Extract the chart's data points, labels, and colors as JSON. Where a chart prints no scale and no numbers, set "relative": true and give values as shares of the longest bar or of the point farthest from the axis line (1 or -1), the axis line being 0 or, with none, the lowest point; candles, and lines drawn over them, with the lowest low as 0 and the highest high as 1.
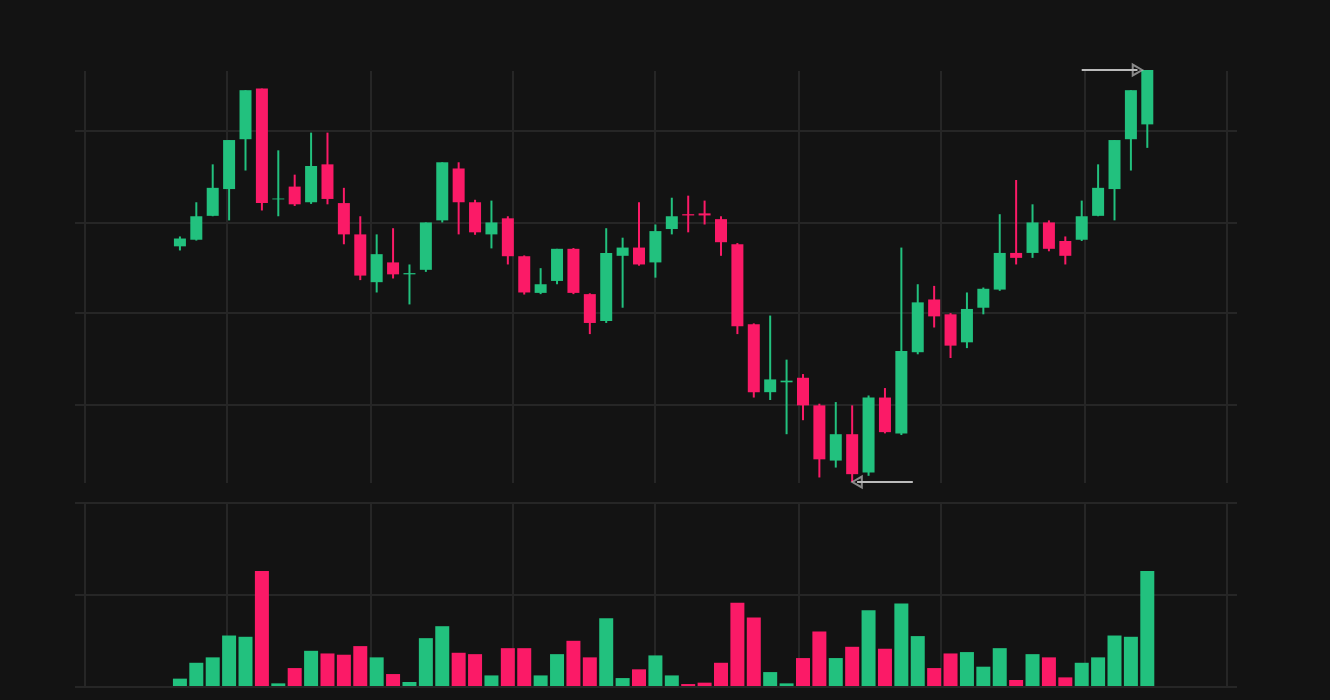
{
  "chart_data": [
    {
      "type": "candlestick",
      "relative": true,
      "grid": true,
      "tick_labels": false,
      "categories": [
        null,
        null,
        null,
        null,
        null,
        null,
        null,
        null,
        null,
        null,
        null,
        null,
        null,
        null,
        null,
        null,
        null,
        null,
        null,
        null,
        null,
        null,
        null,
        null,
        null,
        null,
        null,
        null,
        null,
        null,
        null,
        null,
        null,
        null,
        null,
        null,
        null,
        null,
        null,
        null,
        null,
        null,
        null,
        null,
        null,
        null,
        null,
        null,
        null,
        null,
        null,
        null,
        null,
        null,
        null,
        null,
        null,
        null,
        null,
        null
      ],
      "ohlc": [
        [
          0.572,
          0.596,
          0.562,
          0.591
        ],
        [
          0.588,
          0.679,
          0.586,
          0.645
        ],
        [
          0.646,
          0.771,
          0.645,
          0.714
        ],
        [
          0.711,
          0.83,
          0.635,
          0.83
        ],
        [
          0.832,
          0.951,
          0.756,
          0.951
        ],
        [
          0.955,
          0.955,
          0.659,
          0.677
        ],
        [
          0.686,
          0.805,
          0.645,
          0.688
        ],
        [
          0.717,
          0.746,
          0.67,
          0.674
        ],
        [
          0.679,
          0.848,
          0.675,
          0.767
        ],
        [
          0.771,
          0.848,
          0.674,
          0.687
        ],
        [
          0.677,
          0.714,
          0.577,
          0.601
        ],
        [
          0.601,
          0.645,
          0.49,
          0.501
        ],
        [
          0.485,
          0.601,
          0.46,
          0.553
        ],
        [
          0.533,
          0.616,
          0.494,
          0.504
        ],
        [
          0.504,
          0.528,
          0.431,
          0.507
        ],
        [
          0.515,
          0.63,
          0.51,
          0.63
        ],
        [
          0.635,
          0.776,
          0.63,
          0.776
        ],
        [
          0.761,
          0.776,
          0.601,
          0.679
        ],
        [
          0.679,
          0.685,
          0.6,
          0.606
        ],
        [
          0.601,
          0.683,
          0.567,
          0.63
        ],
        [
          0.64,
          0.645,
          0.528,
          0.548
        ],
        [
          0.548,
          0.55,
          0.455,
          0.46
        ],
        [
          0.459,
          0.519,
          0.456,
          0.48
        ],
        [
          0.488,
          0.566,
          0.48,
          0.566
        ],
        [
          0.566,
          0.568,
          0.456,
          0.459
        ],
        [
          0.456,
          0.458,
          0.359,
          0.386
        ],
        [
          0.391,
          0.616,
          0.386,
          0.556
        ],
        [
          0.549,
          0.593,
          0.423,
          0.569
        ],
        [
          0.569,
          0.679,
          0.525,
          0.528
        ],
        [
          0.533,
          0.625,
          0.496,
          0.609
        ],
        [
          0.614,
          0.69,
          0.601,
          0.645
        ],
        [
          0.65,
          0.695,
          0.606,
          0.647
        ],
        [
          0.652,
          0.683,
          0.625,
          0.647
        ],
        [
          0.638,
          0.645,
          0.549,
          0.582
        ],
        [
          0.577,
          0.58,
          0.359,
          0.378
        ],
        [
          0.383,
          0.385,
          0.205,
          0.218
        ],
        [
          0.218,
          0.404,
          0.199,
          0.249
        ],
        [
          0.242,
          0.297,
          0.116,
          0.246
        ],
        [
          0.253,
          0.262,
          0.15,
          0.186
        ],
        [
          0.186,
          0.19,
          0.011,
          0.055
        ],
        [
          0.052,
          0.194,
          0.035,
          0.116
        ],
        [
          0.116,
          0.186,
          0.0,
          0.019
        ],
        [
          0.023,
          0.21,
          0.015,
          0.205
        ],
        [
          0.205,
          0.228,
          0.118,
          0.121
        ],
        [
          0.118,
          0.569,
          0.114,
          0.318
        ],
        [
          0.315,
          0.48,
          0.31,
          0.436
        ],
        [
          0.443,
          0.476,
          0.375,
          0.402
        ],
        [
          0.407,
          0.41,
          0.301,
          0.331
        ],
        [
          0.339,
          0.46,
          0.325,
          0.42
        ],
        [
          0.423,
          0.472,
          0.407,
          0.469
        ],
        [
          0.467,
          0.65,
          0.464,
          0.556
        ],
        [
          0.556,
          0.733,
          0.528,
          0.544
        ],
        [
          0.556,
          0.674,
          0.544,
          0.63
        ],
        [
          0.63,
          0.635,
          0.56,
          0.566
        ],
        [
          0.585,
          0.596,
          0.528,
          0.549
        ],
        [
          0.588,
          0.683,
          0.585,
          0.645
        ],
        [
          0.646,
          0.771,
          0.645,
          0.714
        ],
        [
          0.711,
          0.83,
          0.635,
          0.83
        ],
        [
          0.832,
          0.951,
          0.756,
          0.951
        ],
        [
          0.868,
          1.0,
          0.811,
          1.0
        ]
      ],
      "colors": [
        "#22c17e",
        "#22c17e",
        "#22c17e",
        "#22c17e",
        "#22c17e",
        "#fb1a67",
        "#22c17e",
        "#fb1a67",
        "#22c17e",
        "#fb1a67",
        "#fb1a67",
        "#fb1a67",
        "#22c17e",
        "#fb1a67",
        "#22c17e",
        "#22c17e",
        "#22c17e",
        "#fb1a67",
        "#fb1a67",
        "#22c17e",
        "#fb1a67",
        "#fb1a67",
        "#22c17e",
        "#22c17e",
        "#fb1a67",
        "#fb1a67",
        "#22c17e",
        "#22c17e",
        "#fb1a67",
        "#22c17e",
        "#22c17e",
        "#fb1a67",
        "#fb1a67",
        "#fb1a67",
        "#fb1a67",
        "#fb1a67",
        "#22c17e",
        "#22c17e",
        "#fb1a67",
        "#fb1a67",
        "#22c17e",
        "#fb1a67",
        "#22c17e",
        "#fb1a67",
        "#22c17e",
        "#22c17e",
        "#fb1a67",
        "#fb1a67",
        "#22c17e",
        "#22c17e",
        "#22c17e",
        "#fb1a67",
        "#22c17e",
        "#fb1a67",
        "#fb1a67",
        "#22c17e",
        "#22c17e",
        "#22c17e",
        "#22c17e",
        "#22c17e"
      ]
    },
    {
      "type": "bar",
      "relative": true,
      "grid": true,
      "tick_labels": false,
      "categories": [
        null,
        null,
        null,
        null,
        null,
        null,
        null,
        null,
        null,
        null,
        null,
        null,
        null,
        null,
        null,
        null,
        null,
        null,
        null,
        null,
        null,
        null,
        null,
        null,
        null,
        null,
        null,
        null,
        null,
        null,
        null,
        null,
        null,
        null,
        null,
        null,
        null,
        null,
        null,
        null,
        null,
        null,
        null,
        null,
        null,
        null,
        null,
        null,
        null,
        null,
        null,
        null,
        null,
        null,
        null,
        null,
        null,
        null,
        null,
        null
      ],
      "values": [
        0.064,
        0.202,
        0.249,
        0.439,
        0.428,
        1.0,
        0.023,
        0.156,
        0.306,
        0.283,
        0.272,
        0.347,
        0.249,
        0.104,
        0.035,
        0.416,
        0.52,
        0.289,
        0.277,
        0.092,
        0.329,
        0.329,
        0.092,
        0.277,
        0.393,
        0.249,
        0.59,
        0.069,
        0.145,
        0.266,
        0.092,
        0.017,
        0.029,
        0.202,
        0.723,
        0.595,
        0.121,
        0.023,
        0.243,
        0.474,
        0.243,
        0.341,
        0.659,
        0.324,
        0.717,
        0.434,
        0.156,
        0.283,
        0.295,
        0.168,
        0.329,
        0.052,
        0.277,
        0.249,
        0.075,
        0.202,
        0.249,
        0.439,
        0.428,
        1.0
      ],
      "colors": [
        "#22c17e",
        "#22c17e",
        "#22c17e",
        "#22c17e",
        "#22c17e",
        "#fb1a67",
        "#22c17e",
        "#fb1a67",
        "#22c17e",
        "#fb1a67",
        "#fb1a67",
        "#fb1a67",
        "#22c17e",
        "#fb1a67",
        "#22c17e",
        "#22c17e",
        "#22c17e",
        "#fb1a67",
        "#fb1a67",
        "#22c17e",
        "#fb1a67",
        "#fb1a67",
        "#22c17e",
        "#22c17e",
        "#fb1a67",
        "#fb1a67",
        "#22c17e",
        "#22c17e",
        "#fb1a67",
        "#22c17e",
        "#22c17e",
        "#fb1a67",
        "#fb1a67",
        "#fb1a67",
        "#fb1a67",
        "#fb1a67",
        "#22c17e",
        "#22c17e",
        "#fb1a67",
        "#fb1a67",
        "#22c17e",
        "#fb1a67",
        "#22c17e",
        "#fb1a67",
        "#22c17e",
        "#22c17e",
        "#fb1a67",
        "#fb1a67",
        "#22c17e",
        "#22c17e",
        "#22c17e",
        "#fb1a67",
        "#22c17e",
        "#fb1a67",
        "#fb1a67",
        "#22c17e",
        "#22c17e",
        "#22c17e",
        "#22c17e",
        "#22c17e"
      ]
    }
  ]
}
